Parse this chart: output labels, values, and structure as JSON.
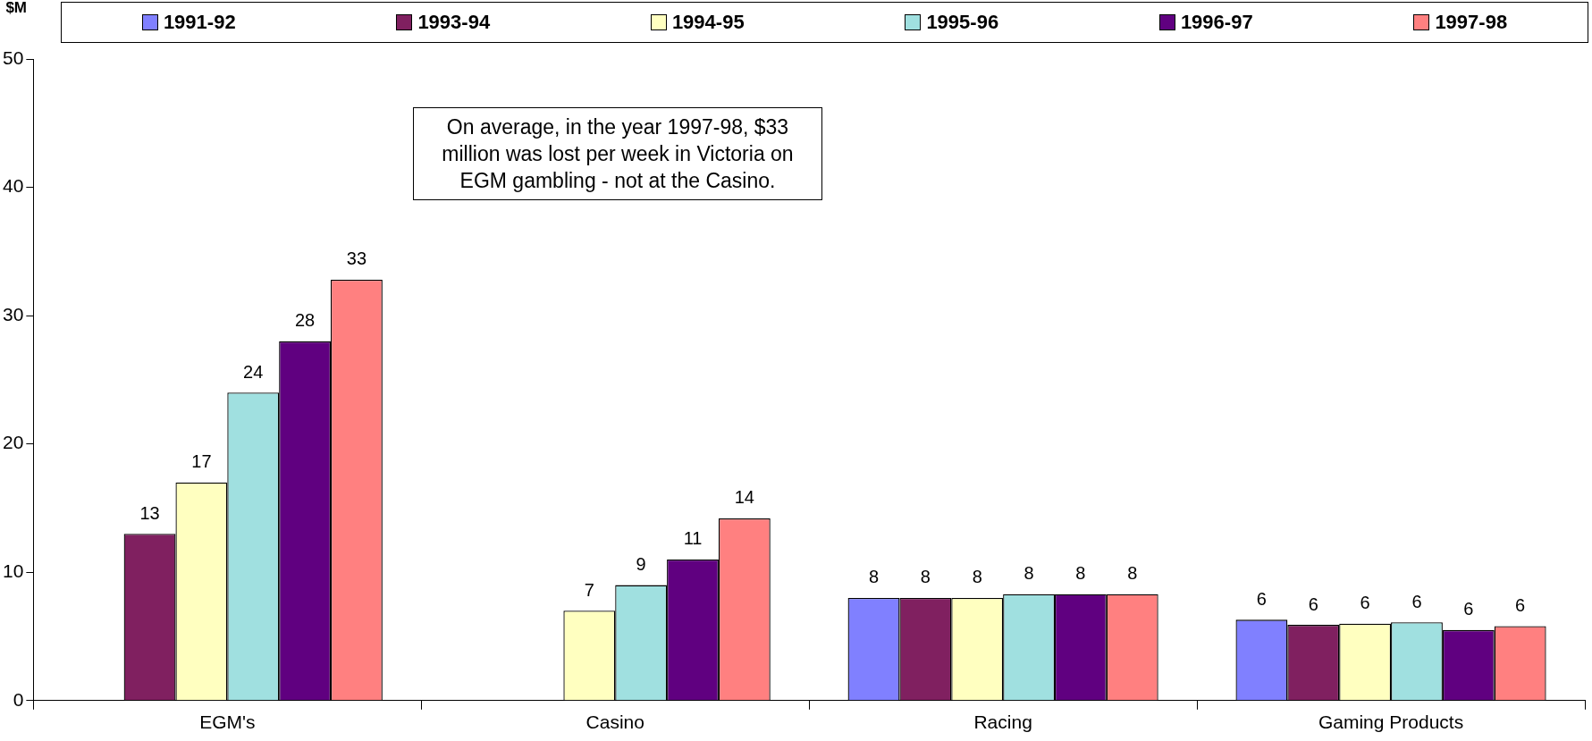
{
  "chart_data": {
    "type": "bar",
    "ylabel": "$M",
    "categories": [
      "EGM's",
      "Casino",
      "Racing",
      "Gaming Products"
    ],
    "series": [
      {
        "name": "1991-92",
        "color": "#8080ff",
        "values": [
          null,
          null,
          8,
          6.3
        ],
        "value_labels": [
          null,
          null,
          "8",
          "6"
        ]
      },
      {
        "name": "1993-94",
        "color": "#802060",
        "values": [
          13,
          null,
          8,
          5.9
        ],
        "value_labels": [
          "13",
          null,
          "8",
          "6"
        ]
      },
      {
        "name": "1994-95",
        "color": "#ffffc0",
        "values": [
          17,
          7,
          8,
          6
        ],
        "value_labels": [
          "17",
          "7",
          "8",
          "6"
        ]
      },
      {
        "name": "1995-96",
        "color": "#a0e0e0",
        "values": [
          24,
          9,
          8.3,
          6.1
        ],
        "value_labels": [
          "24",
          "9",
          "8",
          "6"
        ]
      },
      {
        "name": "1996-97",
        "color": "#600080",
        "values": [
          28,
          11,
          8.3,
          5.5
        ],
        "value_labels": [
          "28",
          "11",
          "8",
          "6"
        ]
      },
      {
        "name": "1997-98",
        "color": "#ff8080",
        "values": [
          32.8,
          14.2,
          8.3,
          5.8
        ],
        "value_labels": [
          "33",
          "14",
          "8",
          "6"
        ]
      }
    ],
    "ylim": [
      0,
      50
    ],
    "yticks": [
      0,
      10,
      20,
      30,
      40,
      50
    ],
    "grid": false,
    "legend": "top",
    "annotations": [
      "On average, in the year 1997-98, $33 million was lost per week in Victoria on EGM gambling - not at the Casino."
    ]
  }
}
